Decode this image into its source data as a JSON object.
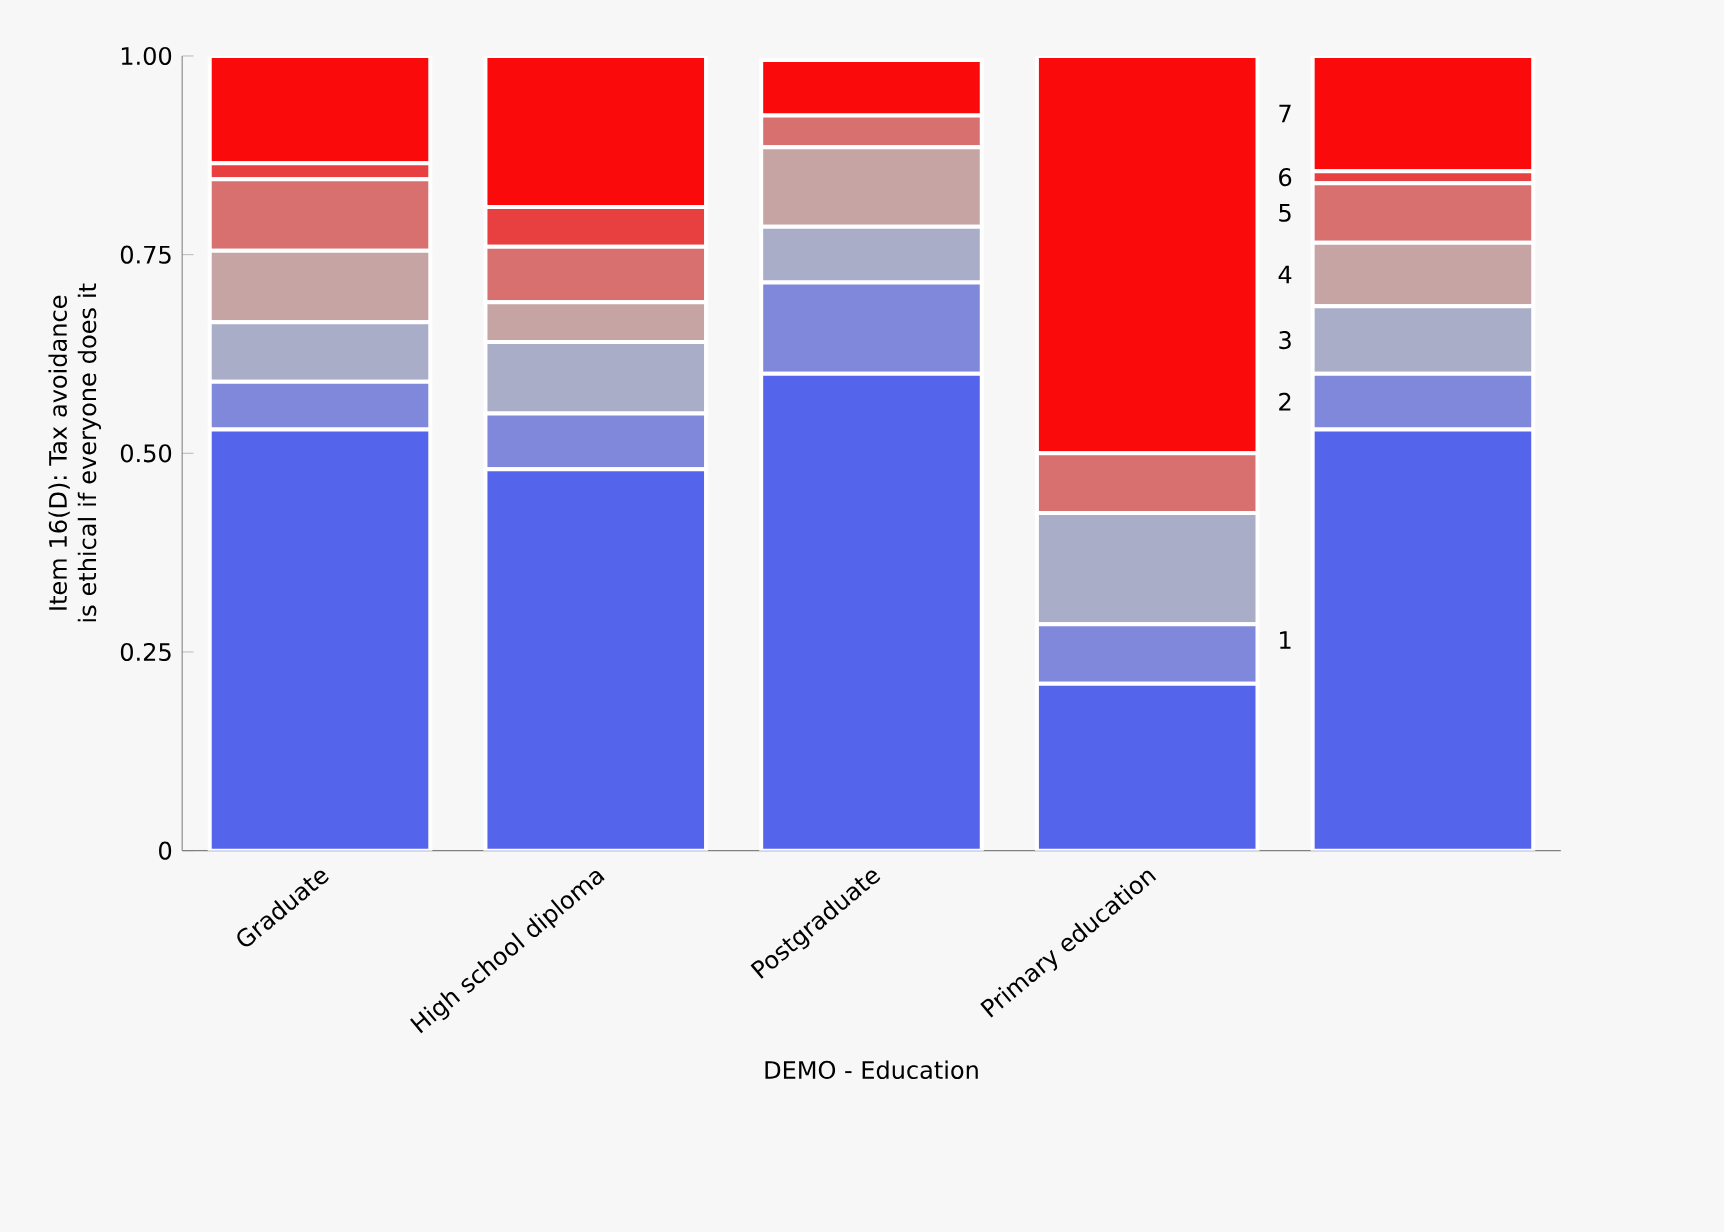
{
  "chart_data": {
    "type": "bar",
    "stacked": true,
    "xlabel": "DEMO - Education",
    "ylabel": "Item 16(D): Tax avoidance is ethical if everyone does it",
    "categories": [
      "Graduate",
      "High school diploma",
      "Postgraduate",
      "Primary education",
      null
    ],
    "ylim": [
      0,
      1
    ],
    "yticks": [
      0,
      0.25,
      {
        "value": 0.5,
        "label": "0.50"
      },
      0.75,
      {
        "value": 1,
        "label": "1.00"
      }
    ],
    "series": [
      {
        "name": "1",
        "color": "#5465eb",
        "values": [
          0.53,
          0.48,
          0.6,
          0.21,
          0.53
        ]
      },
      {
        "name": "2",
        "color": "#8088db",
        "values": [
          0.06,
          0.07,
          0.115,
          0.075,
          0.07
        ]
      },
      {
        "name": "3",
        "color": "#a9adc8",
        "values": [
          0.075,
          0.09,
          0.07,
          0.14,
          0.085
        ]
      },
      {
        "name": "4",
        "color": "#c6a4a4",
        "values": [
          0.09,
          0.05,
          0.1,
          0,
          0.08
        ]
      },
      {
        "name": "5",
        "color": "#d97070",
        "values": [
          0.09,
          0.07,
          0.04,
          0.075,
          0.075
        ]
      },
      {
        "name": "6",
        "color": "#e84040",
        "values": [
          0.02,
          0.05,
          0,
          0,
          0.015
        ]
      },
      {
        "name": "7",
        "color": "#fa0a0a",
        "values": [
          0.135,
          0.19,
          0.07,
          0.5,
          0.145
        ]
      }
    ]
  }
}
